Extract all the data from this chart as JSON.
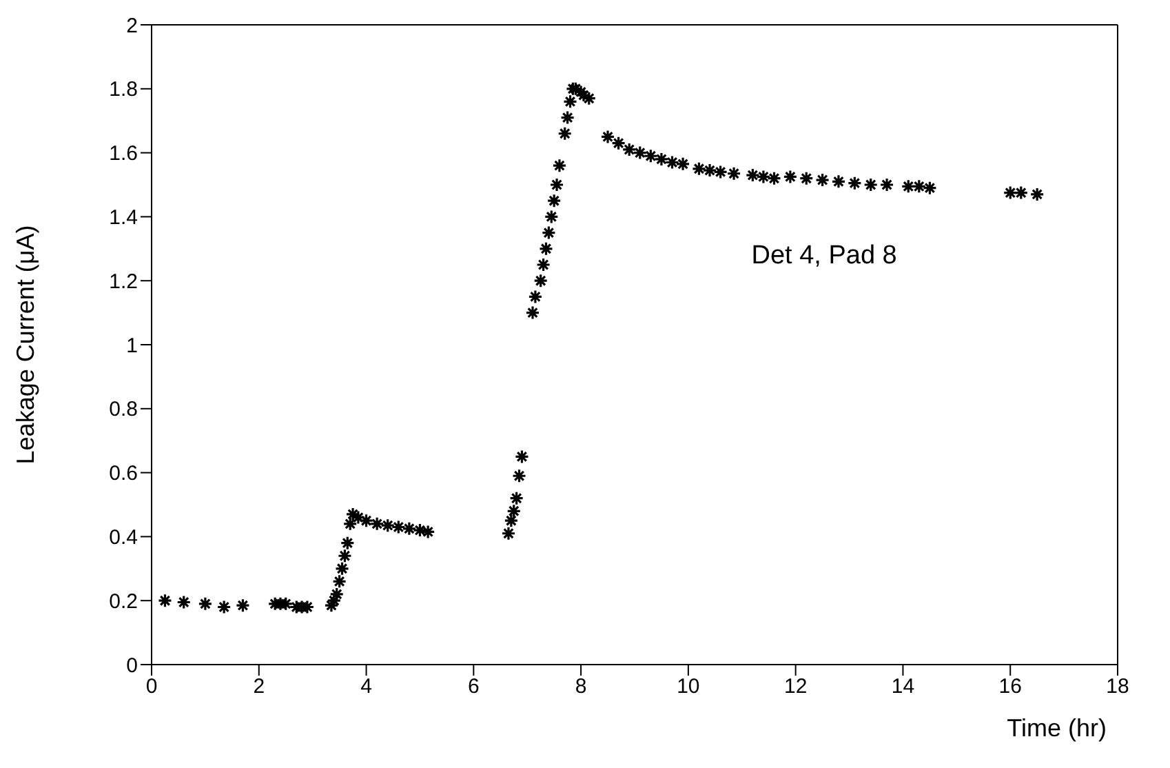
{
  "chart_data": {
    "type": "scatter",
    "xlabel": "Time (hr)",
    "ylabel": "Leakage Current (μA)",
    "annotations": [
      "Det 4, Pad 8"
    ],
    "xlim": [
      0,
      18
    ],
    "xticks": [
      0,
      2,
      4,
      6,
      8,
      10,
      12,
      14,
      16,
      18
    ],
    "ylim": [
      0,
      2
    ],
    "yticks": [
      0,
      0.2,
      0.4,
      0.6,
      0.8,
      1,
      1.2,
      1.4,
      1.6,
      1.8,
      2
    ],
    "marker": "cross",
    "series": [
      {
        "color": "#000000",
        "x": [
          0.25,
          0.6,
          1.0,
          1.35,
          1.7,
          2.3,
          2.4,
          2.5,
          2.7,
          2.8,
          2.9,
          3.35,
          3.4,
          3.45,
          3.5,
          3.55,
          3.6,
          3.65,
          3.7,
          3.75,
          3.85,
          4.0,
          4.2,
          4.4,
          4.6,
          4.8,
          5.0,
          5.15,
          6.65,
          6.7,
          6.75,
          6.8,
          6.85,
          6.9,
          7.1,
          7.15,
          7.25,
          7.3,
          7.35,
          7.4,
          7.45,
          7.5,
          7.55,
          7.6,
          7.7,
          7.75,
          7.8,
          7.85,
          7.9,
          8.0,
          8.05,
          8.15,
          8.5,
          8.7,
          8.9,
          9.1,
          9.3,
          9.5,
          9.7,
          9.9,
          10.2,
          10.4,
          10.6,
          10.85,
          11.2,
          11.4,
          11.6,
          11.9,
          12.2,
          12.5,
          12.8,
          13.1,
          13.4,
          13.7,
          14.1,
          14.3,
          14.5,
          16.0,
          16.2,
          16.5
        ],
        "values": [
          0.2,
          0.195,
          0.19,
          0.18,
          0.185,
          0.19,
          0.19,
          0.19,
          0.18,
          0.18,
          0.18,
          0.185,
          0.2,
          0.22,
          0.26,
          0.3,
          0.34,
          0.38,
          0.44,
          0.47,
          0.46,
          0.45,
          0.44,
          0.435,
          0.43,
          0.425,
          0.42,
          0.415,
          0.41,
          0.45,
          0.48,
          0.52,
          0.59,
          0.65,
          1.1,
          1.15,
          1.2,
          1.25,
          1.3,
          1.35,
          1.4,
          1.45,
          1.5,
          1.56,
          1.66,
          1.71,
          1.76,
          1.8,
          1.8,
          1.79,
          1.78,
          1.77,
          1.65,
          1.63,
          1.61,
          1.6,
          1.59,
          1.58,
          1.57,
          1.565,
          1.55,
          1.545,
          1.54,
          1.535,
          1.53,
          1.525,
          1.52,
          1.525,
          1.52,
          1.515,
          1.51,
          1.505,
          1.5,
          1.5,
          1.495,
          1.495,
          1.49,
          1.475,
          1.475,
          1.47
        ]
      }
    ]
  }
}
